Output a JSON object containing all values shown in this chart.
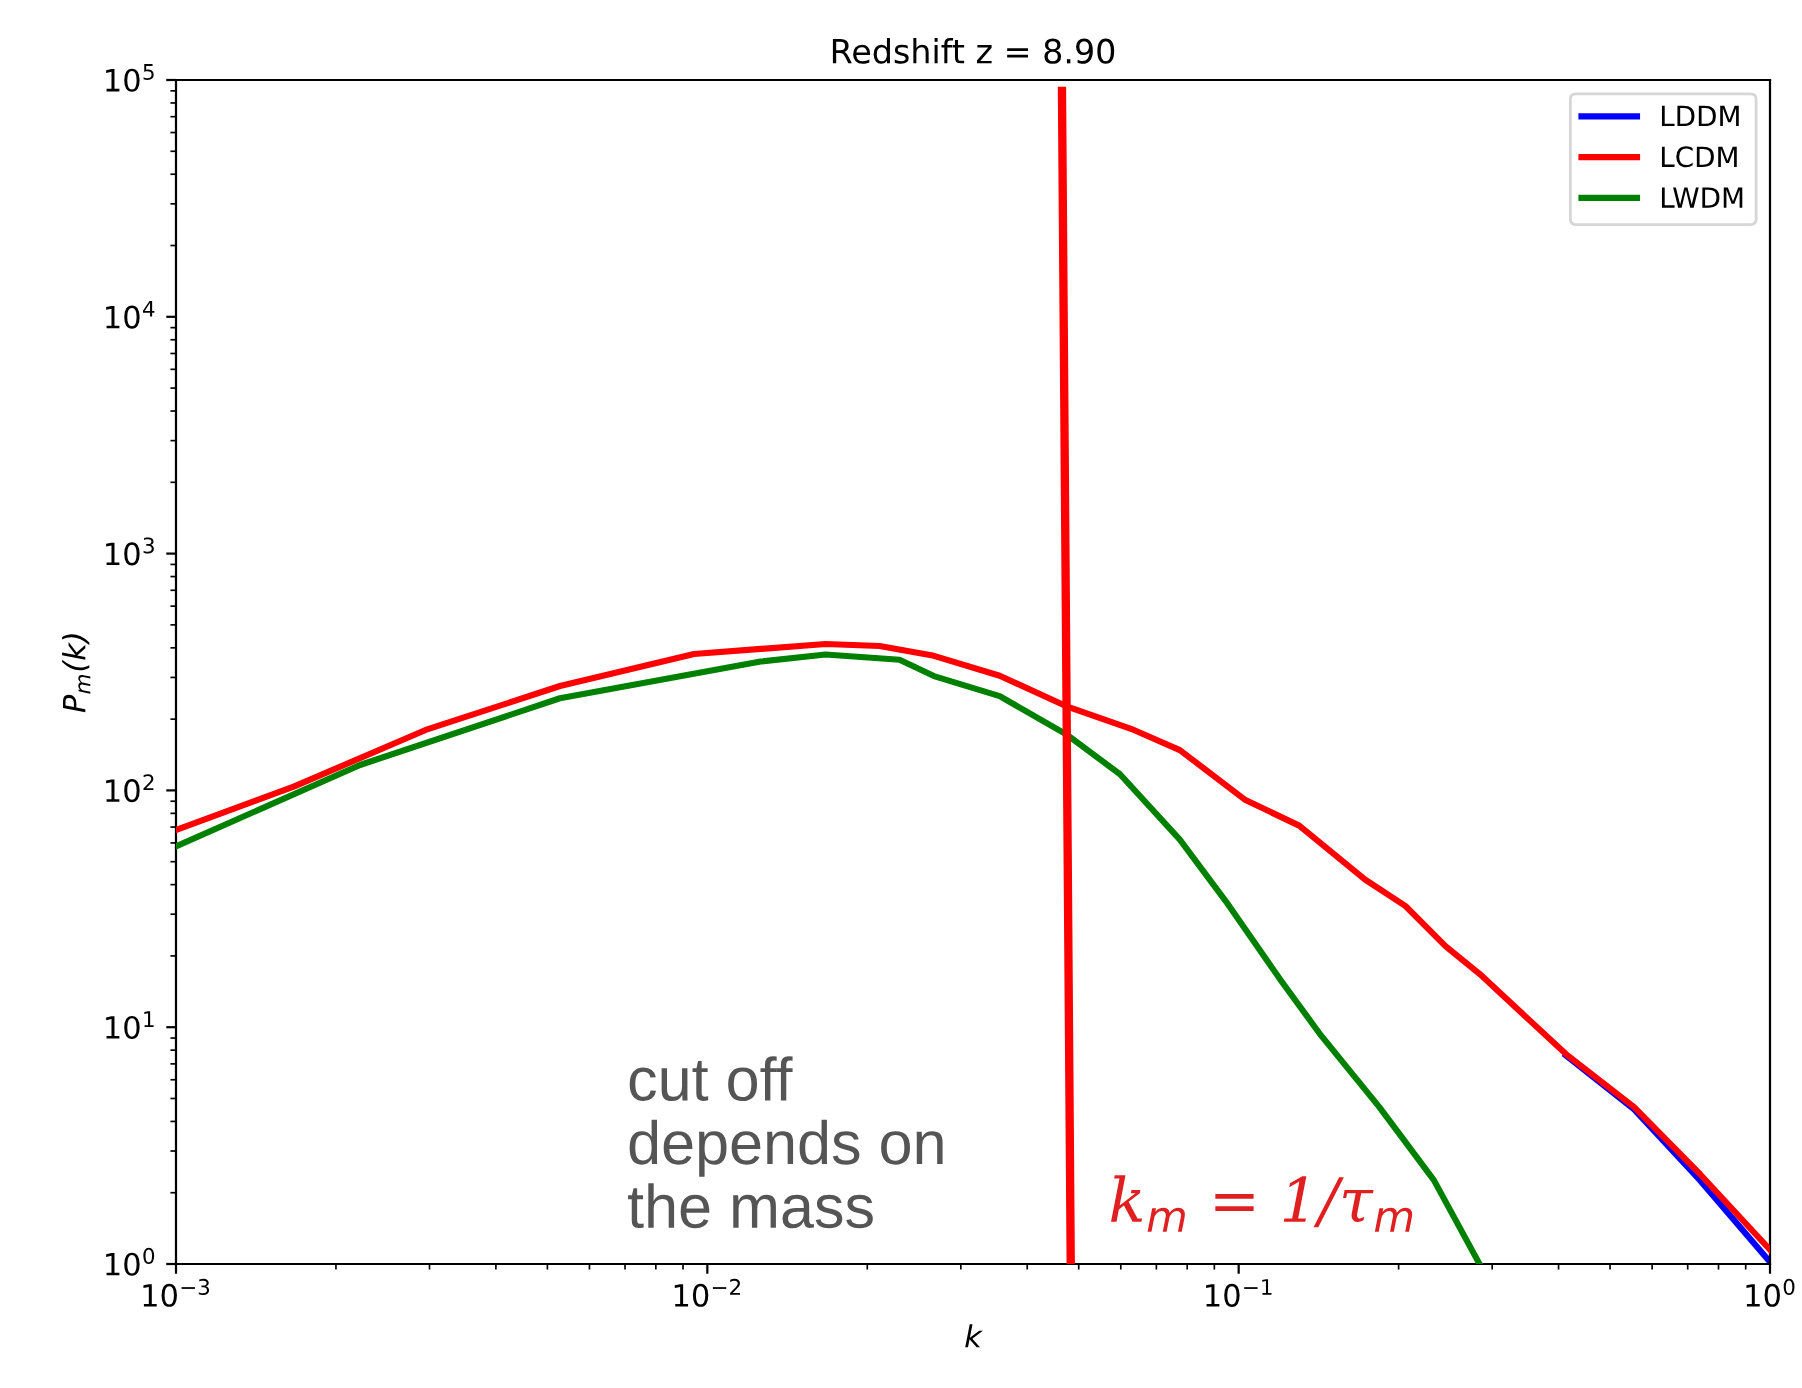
{
  "chart_data": {
    "type": "line",
    "title": "Redshift z = 8.90",
    "xlabel": "k",
    "ylabel": "P$_{m}$(k)",
    "log": "xy",
    "grid": false,
    "legend": "top right",
    "xlim": [
      0.001,
      1
    ],
    "xticks": [
      {
        "value": 0.001,
        "label": "10$^{−3}$"
      },
      {
        "value": 0.01,
        "label": "10$^{−2}$"
      },
      {
        "value": 0.1,
        "label": "10$^{−1}$"
      },
      {
        "value": 1,
        "label": "10$^{0}$"
      }
    ],
    "ylim": [
      1,
      100000
    ],
    "yticks": [
      {
        "value": 1,
        "label": "10$^{0}$"
      },
      {
        "value": 10,
        "label": "10$^{1}$"
      },
      {
        "value": 100,
        "label": "10$^{2}$"
      },
      {
        "value": 1000,
        "label": "10$^{3}$"
      },
      {
        "value": 10000,
        "label": "10$^{4}$"
      },
      {
        "value": 100000,
        "label": "10$^{5}$"
      }
    ],
    "series": [
      {
        "name": "LDDM",
        "color": "#0000ff",
        "x": [
          0.413,
          0.555,
          0.738,
          1.0
        ],
        "values": [
          7.6,
          4.5,
          2.26,
          1.02
        ]
      },
      {
        "name": "LCDM",
        "color": "#ff0000",
        "x": [
          0.001,
          0.00167,
          0.00295,
          0.00528,
          0.00944,
          0.0167,
          0.0211,
          0.0267,
          0.0355,
          0.0473,
          0.0635,
          0.0775,
          0.103,
          0.13,
          0.173,
          0.206,
          0.245,
          0.284,
          0.413,
          0.555,
          0.738,
          1.0
        ],
        "values": [
          68,
          104,
          180,
          276,
          377,
          415,
          407,
          370,
          305,
          227,
          180,
          148,
          91,
          71,
          42,
          32.5,
          22,
          16.8,
          7.7,
          4.6,
          2.4,
          1.15
        ]
      },
      {
        "name": "LWDM",
        "color": "#008000",
        "x": [
          0.001,
          0.00222,
          0.00528,
          0.0126,
          0.0167,
          0.023,
          0.0267,
          0.0355,
          0.0473,
          0.0598,
          0.0775,
          0.0946,
          0.12,
          0.142,
          0.184,
          0.233,
          0.284
        ],
        "values": [
          58,
          128,
          245,
          350,
          375,
          356,
          304,
          250,
          173,
          117,
          62,
          34,
          15.8,
          9.4,
          4.6,
          2.26,
          1
        ]
      },
      {
        "color": "#ff0000",
        "x": [
          0.0465,
          0.0483
        ],
        "values": [
          90000,
          1
        ]
      }
    ],
    "annotations": [
      "cut off\ndepends on\nthe mass",
      "k$_{m}$ = 1/τ$_{m}$"
    ]
  }
}
